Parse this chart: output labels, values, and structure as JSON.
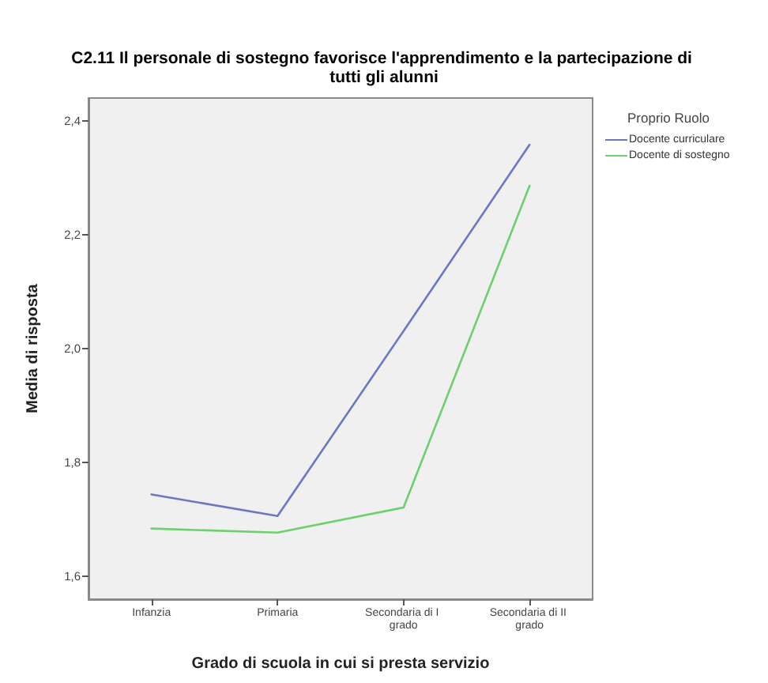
{
  "chart_data": {
    "type": "line",
    "title": "C2.11 Il personale di sostegno favorisce l'apprendimento e la partecipazione di tutti gli alunni",
    "xlabel": "Grado di scuola in cui si presta servizio",
    "ylabel": "Media di risposta",
    "legend_title": "Proprio Ruolo",
    "categories": [
      "Infanzia",
      "Primaria",
      "Secondaria di I grado",
      "Secondaria di II grado"
    ],
    "series": [
      {
        "name": "Docente curriculare",
        "color": "#6a78c2",
        "values": [
          1.744,
          1.706,
          2.031,
          2.358
        ]
      },
      {
        "name": "Docente di sostegno",
        "color": "#6cd06c",
        "values": [
          1.684,
          1.677,
          1.721,
          2.286
        ]
      }
    ],
    "ylim": [
      1.56,
      2.44
    ],
    "yticks": [
      {
        "value": 1.6,
        "label": "1,6"
      },
      {
        "value": 1.8,
        "label": "1,8"
      },
      {
        "value": 2.0,
        "label": "2,0"
      },
      {
        "value": 2.2,
        "label": "2,2"
      },
      {
        "value": 2.4,
        "label": "2,4"
      }
    ],
    "grid": false,
    "legend": "top right",
    "marker": "none",
    "line_style": "solid"
  }
}
